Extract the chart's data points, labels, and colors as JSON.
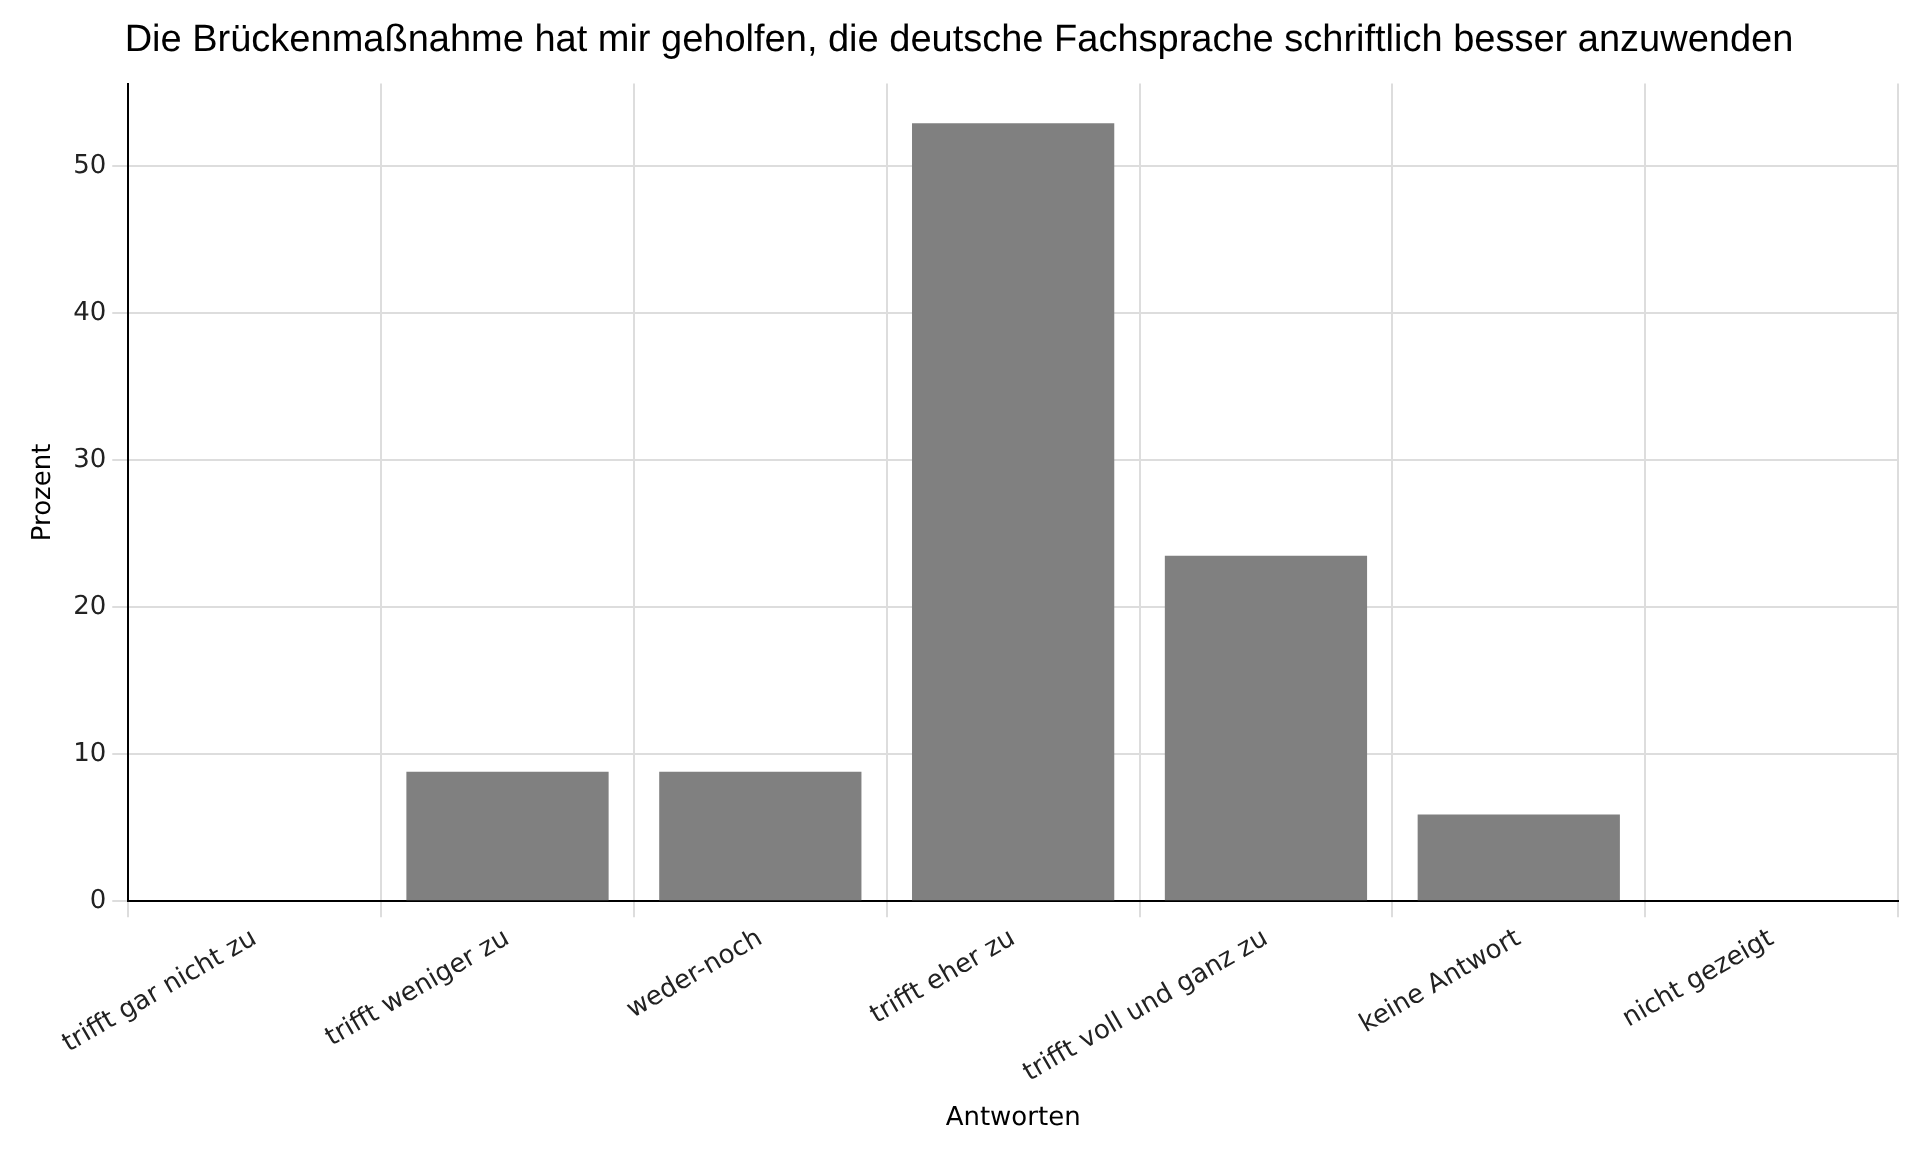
{
  "chart_data": {
    "type": "bar",
    "title": "Die Brückenmaßnahme hat mir geholfen, die deutsche Fachsprache schriftlich besser anzuwenden",
    "xlabel": "Antworten",
    "ylabel": "Prozent",
    "categories": [
      "trifft gar nicht zu",
      "trifft weniger zu",
      "weder-noch",
      "trifft eher zu",
      "trifft voll und ganz zu",
      "keine Antwort",
      "nicht gezeigt"
    ],
    "values": [
      0,
      8.8,
      8.8,
      52.9,
      23.5,
      5.9,
      0
    ],
    "color": "#808080",
    "ylim": [
      0,
      55.6
    ],
    "yticks": [
      0,
      10,
      20,
      30,
      40,
      50
    ],
    "grid": true
  }
}
